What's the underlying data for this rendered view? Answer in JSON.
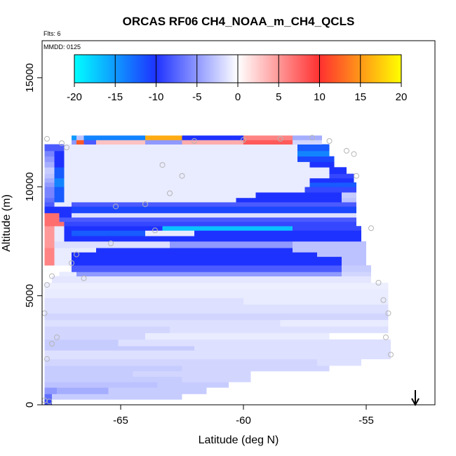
{
  "chart_data": {
    "type": "heatmap",
    "title": "ORCAS RF06 CH4_NOAA_m_CH4_QCLS",
    "flights_label": "Flts: 6",
    "date_label": "MMDD: 0125",
    "xlabel": "Latitude (deg N)",
    "ylabel": "Altitude (m)",
    "xlim": [
      -68.2,
      -52.2
    ],
    "ylim": [
      0,
      16700
    ],
    "x_ticks": [
      -65,
      -60,
      -55
    ],
    "x_tick_labels": [
      "-65",
      "-60",
      "-55"
    ],
    "y_ticks": [
      0,
      5000,
      10000,
      15000
    ],
    "y_tick_labels": [
      "0",
      "5000",
      "10000",
      "15000"
    ],
    "colorbar": {
      "range": [
        -20,
        20
      ],
      "ticks": [
        -20,
        -15,
        -10,
        -5,
        0,
        5,
        10,
        15,
        20
      ],
      "tick_labels": [
        "-20",
        "-15",
        "-10",
        "-5",
        "0",
        "5",
        "10",
        "15",
        "20"
      ],
      "colors": {
        "cyan": "#00FFFF",
        "blue": "#1E32FF",
        "white": "#FFFFFF",
        "red": "#FF3030",
        "yellow": "#FFFF00"
      }
    },
    "rows": [
      {
        "y0": 0,
        "y1": 250,
        "segments": [
          [
            -68.1,
            -67.8,
            -9
          ]
        ]
      },
      {
        "y0": 250,
        "y1": 500,
        "segments": [
          [
            -68.1,
            -67.8,
            -7
          ],
          [
            -67.8,
            -62.5,
            -2.5
          ]
        ]
      },
      {
        "y0": 500,
        "y1": 800,
        "segments": [
          [
            -68.1,
            -67.6,
            -5
          ],
          [
            -67.6,
            -65.5,
            -4
          ],
          [
            -65.5,
            -61.5,
            -2.5
          ]
        ]
      },
      {
        "y0": 800,
        "y1": 1050,
        "segments": [
          [
            -68.1,
            -63.5,
            -3
          ],
          [
            -63.5,
            -60.6,
            -2.5
          ]
        ]
      },
      {
        "y0": 1050,
        "y1": 1300,
        "segments": [
          [
            -68.1,
            -62.5,
            -2.5
          ],
          [
            -62.5,
            -59.7,
            -2
          ]
        ]
      },
      {
        "y0": 1300,
        "y1": 1550,
        "segments": [
          [
            -68.1,
            -64.5,
            -2.5
          ],
          [
            -64.5,
            -59.7,
            -2
          ]
        ]
      },
      {
        "y0": 1550,
        "y1": 1800,
        "segments": [
          [
            -68.1,
            -62.5,
            -2.5
          ],
          [
            -62.5,
            -56.5,
            -2
          ]
        ]
      },
      {
        "y0": 1800,
        "y1": 2100,
        "segments": [
          [
            -68.1,
            -57.0,
            -2
          ],
          [
            -57.0,
            -55.2,
            -1.5
          ]
        ]
      },
      {
        "y0": 2100,
        "y1": 2500,
        "segments": [
          [
            -68.1,
            -54.0,
            -1.5
          ]
        ]
      },
      {
        "y0": 2500,
        "y1": 2700,
        "segments": [
          [
            -68.1,
            -62.0,
            -2.5
          ],
          [
            -62.0,
            -54.0,
            -1.5
          ]
        ]
      },
      {
        "y0": 2700,
        "y1": 3000,
        "segments": [
          [
            -68.1,
            -65.1,
            -2.5
          ],
          [
            -65.1,
            -54.0,
            -1.5
          ]
        ]
      },
      {
        "y0": 3000,
        "y1": 3300,
        "segments": [
          [
            -68.1,
            -64.0,
            -2
          ],
          [
            -64.0,
            -56.5,
            -1
          ]
        ]
      },
      {
        "y0": 3300,
        "y1": 3600,
        "segments": [
          [
            -68.1,
            -63.0,
            -2
          ],
          [
            -63.0,
            -54.1,
            -1.5
          ]
        ]
      },
      {
        "y0": 3600,
        "y1": 3900,
        "segments": [
          [
            -68.1,
            -58.5,
            -1.5
          ],
          [
            -58.5,
            -54.1,
            -1
          ]
        ]
      },
      {
        "y0": 3900,
        "y1": 4200,
        "segments": [
          [
            -68.1,
            -54.1,
            -2
          ]
        ]
      },
      {
        "y0": 4200,
        "y1": 4600,
        "segments": [
          [
            -68.1,
            -54.1,
            -1.5
          ]
        ]
      },
      {
        "y0": 4600,
        "y1": 4900,
        "segments": [
          [
            -68.1,
            -60.0,
            -1.5
          ],
          [
            -60.0,
            -54.1,
            -1
          ]
        ]
      },
      {
        "y0": 4900,
        "y1": 5300,
        "segments": [
          [
            -68.1,
            -54.1,
            -1
          ]
        ]
      },
      {
        "y0": 5300,
        "y1": 5600,
        "segments": [
          [
            -68.1,
            -54.1,
            -0.8
          ]
        ]
      },
      {
        "y0": 5600,
        "y1": 5900,
        "segments": [
          [
            -67.8,
            -54.8,
            -1.2
          ]
        ]
      },
      {
        "y0": 5900,
        "y1": 6100,
        "segments": [
          [
            -67.5,
            -66.8,
            -1
          ],
          [
            -66.8,
            -56.0,
            -5
          ],
          [
            -56.0,
            -54.8,
            -2
          ]
        ]
      },
      {
        "y0": 6100,
        "y1": 6400,
        "segments": [
          [
            -67.0,
            -56.0,
            -8
          ],
          [
            -56.0,
            -54.8,
            -2.5
          ]
        ]
      },
      {
        "y0": 6400,
        "y1": 6800,
        "segments": [
          [
            -68.1,
            -67.7,
            6
          ],
          [
            -67.7,
            -67.0,
            -1
          ],
          [
            -67.0,
            -56.0,
            -10
          ],
          [
            -56.0,
            -55.0,
            -3
          ]
        ]
      },
      {
        "y0": 6800,
        "y1": 7000,
        "segments": [
          [
            -68.1,
            -67.7,
            6
          ],
          [
            -67.7,
            -67.0,
            -1
          ],
          [
            -67.0,
            -57.0,
            -10
          ],
          [
            -57.0,
            -55.0,
            -3
          ]
        ]
      },
      {
        "y0": 7000,
        "y1": 7200,
        "segments": [
          [
            -68.1,
            -67.7,
            6
          ],
          [
            -67.7,
            -66.0,
            -1
          ],
          [
            -66.0,
            -58.0,
            -10
          ],
          [
            -58.0,
            -55.0,
            -3
          ]
        ]
      },
      {
        "y0": 7200,
        "y1": 7500,
        "segments": [
          [
            -68.1,
            -67.7,
            5
          ],
          [
            -67.7,
            -63.0,
            -1.5
          ],
          [
            -63.0,
            -58.0,
            -5
          ],
          [
            -58.0,
            -55.0,
            -3
          ]
        ]
      },
      {
        "y0": 7500,
        "y1": 7750,
        "segments": [
          [
            -68.1,
            -67.7,
            5
          ],
          [
            -67.7,
            -67.3,
            -1
          ],
          [
            -67.3,
            -55.2,
            -10
          ]
        ]
      },
      {
        "y0": 7750,
        "y1": 8000,
        "segments": [
          [
            -68.1,
            -67.7,
            5
          ],
          [
            -67.7,
            -67.3,
            -1
          ],
          [
            -67.3,
            -67.0,
            -10
          ],
          [
            -67.0,
            -64.0,
            -12
          ],
          [
            -64.0,
            -62.0,
            -1
          ],
          [
            -62.0,
            -55.2,
            -10
          ]
        ]
      },
      {
        "y0": 8000,
        "y1": 8200,
        "segments": [
          [
            -68.1,
            -67.7,
            5
          ],
          [
            -67.7,
            -67.3,
            -1
          ],
          [
            -67.3,
            -63.3,
            -10
          ],
          [
            -63.3,
            -58.0,
            -17
          ],
          [
            -58.0,
            -55.2,
            -9
          ]
        ]
      },
      {
        "y0": 8200,
        "y1": 8400,
        "segments": [
          [
            -68.1,
            -67.3,
            7
          ],
          [
            -67.3,
            -55.4,
            -9
          ]
        ]
      },
      {
        "y0": 8400,
        "y1": 8600,
        "segments": [
          [
            -68.1,
            -67.5,
            7
          ],
          [
            -67.5,
            -55.4,
            -8
          ]
        ]
      },
      {
        "y0": 8600,
        "y1": 8800,
        "segments": [
          [
            -68.1,
            -67.5,
            7
          ],
          [
            -67.5,
            -67.0,
            -10
          ],
          [
            -67.0,
            -55.4,
            -1.5
          ]
        ]
      },
      {
        "y0": 8800,
        "y1": 9100,
        "segments": [
          [
            -68.1,
            -67.0,
            -10
          ],
          [
            -67.0,
            -55.4,
            -11
          ]
        ]
      },
      {
        "y0": 9100,
        "y1": 9300,
        "segments": [
          [
            -68.1,
            -67.7,
            -8
          ],
          [
            -67.7,
            -67.0,
            -1
          ],
          [
            -67.0,
            -55.4,
            -8
          ]
        ]
      },
      {
        "y0": 9300,
        "y1": 9500,
        "segments": [
          [
            -68.1,
            -67.7,
            -7
          ],
          [
            -67.7,
            -67.3,
            -12
          ],
          [
            -67.3,
            -60.3,
            -1
          ],
          [
            -60.3,
            -56.0,
            -10
          ],
          [
            -56.0,
            -55.4,
            -3
          ]
        ]
      },
      {
        "y0": 9500,
        "y1": 9750,
        "segments": [
          [
            -68.1,
            -67.7,
            -6
          ],
          [
            -67.7,
            -67.3,
            -12
          ],
          [
            -67.3,
            -59.5,
            -1
          ],
          [
            -59.5,
            -56.0,
            -10
          ],
          [
            -56.0,
            -55.4,
            -2.5
          ]
        ]
      },
      {
        "y0": 9750,
        "y1": 10000,
        "segments": [
          [
            -68.1,
            -67.7,
            -6
          ],
          [
            -67.7,
            -67.3,
            -12
          ],
          [
            -67.3,
            -57.5,
            -1
          ],
          [
            -57.5,
            -55.4,
            -9
          ]
        ]
      },
      {
        "y0": 10000,
        "y1": 10200,
        "segments": [
          [
            -68.1,
            -67.7,
            -5
          ],
          [
            -67.7,
            -67.3,
            -14
          ],
          [
            -67.3,
            -57.3,
            -1
          ],
          [
            -57.3,
            -55.4,
            -12
          ]
        ]
      },
      {
        "y0": 10200,
        "y1": 10400,
        "segments": [
          [
            -68.1,
            -67.7,
            -4
          ],
          [
            -67.7,
            -67.3,
            -14
          ],
          [
            -67.3,
            -57.3,
            -1
          ],
          [
            -57.3,
            -55.5,
            -10
          ]
        ]
      },
      {
        "y0": 10400,
        "y1": 10600,
        "segments": [
          [
            -68.1,
            -67.7,
            -3
          ],
          [
            -67.7,
            -67.3,
            -12
          ],
          [
            -67.3,
            -56.5,
            -1
          ],
          [
            -56.5,
            -55.5,
            -9
          ]
        ]
      },
      {
        "y0": 10600,
        "y1": 10900,
        "segments": [
          [
            -68.1,
            -67.7,
            -2.5
          ],
          [
            -67.7,
            -67.3,
            -12
          ],
          [
            -67.3,
            -56.5,
            -1
          ],
          [
            -56.5,
            -55.8,
            -10
          ]
        ]
      },
      {
        "y0": 10900,
        "y1": 11150,
        "segments": [
          [
            -68.1,
            -67.7,
            -4
          ],
          [
            -67.7,
            -67.3,
            -10
          ],
          [
            -67.3,
            -57.3,
            -1
          ],
          [
            -57.3,
            -56.3,
            -10
          ]
        ]
      },
      {
        "y0": 11150,
        "y1": 11400,
        "segments": [
          [
            -68.1,
            -67.7,
            -5
          ],
          [
            -67.7,
            -67.3,
            -10
          ],
          [
            -67.3,
            -57.8,
            -1
          ],
          [
            -57.8,
            -56.3,
            -11
          ]
        ]
      },
      {
        "y0": 11400,
        "y1": 11650,
        "segments": [
          [
            -68.1,
            -67.7,
            -6
          ],
          [
            -67.7,
            -67.3,
            -10
          ],
          [
            -67.3,
            -57.8,
            -1
          ],
          [
            -57.8,
            -56.5,
            -14
          ]
        ]
      },
      {
        "y0": 11650,
        "y1": 11950,
        "segments": [
          [
            -68.1,
            -67.3,
            -8
          ],
          [
            -67.3,
            -57.8,
            -1
          ],
          [
            -57.8,
            -56.5,
            -12
          ]
        ]
      },
      {
        "y0": 11950,
        "y1": 12150,
        "segments": [
          [
            -67.0,
            -66.8,
            -5
          ],
          [
            -66.8,
            -66.5,
            12
          ],
          [
            -66.5,
            -66.0,
            -8
          ],
          [
            -66.0,
            -64.0,
            3
          ],
          [
            -64.0,
            -62.5,
            -5
          ],
          [
            -62.5,
            -60.0,
            4
          ],
          [
            -60.0,
            -58.0,
            8
          ],
          [
            -58.0,
            -56.8,
            -2
          ]
        ]
      },
      {
        "y0": 12150,
        "y1": 12350,
        "segments": [
          [
            -67.0,
            -66.8,
            -15
          ],
          [
            -66.8,
            -66.5,
            -3
          ],
          [
            -66.5,
            -64.0,
            -14
          ],
          [
            -64.0,
            -62.5,
            16
          ],
          [
            -62.5,
            -60.0,
            -10
          ],
          [
            -60.0,
            -58.0,
            6
          ],
          [
            -58.0,
            -56.8,
            -4
          ]
        ]
      }
    ],
    "scatter_points": [
      [
        -68.1,
        200
      ],
      [
        -67.9,
        150
      ],
      [
        -68.0,
        2100
      ],
      [
        -67.8,
        2800
      ],
      [
        -67.6,
        3100
      ],
      [
        -68.1,
        4200
      ],
      [
        -68.0,
        5500
      ],
      [
        -67.8,
        5900
      ],
      [
        -66.5,
        5800
      ],
      [
        -67.0,
        6500
      ],
      [
        -66.8,
        6900
      ],
      [
        -65.4,
        7400
      ],
      [
        -63.6,
        8000
      ],
      [
        -64.0,
        9200
      ],
      [
        -65.2,
        9100
      ],
      [
        -63.0,
        9700
      ],
      [
        -62.5,
        10500
      ],
      [
        -63.3,
        11000
      ],
      [
        -67.2,
        11800
      ],
      [
        -67.4,
        12000
      ],
      [
        -68.0,
        12200
      ],
      [
        -62.0,
        12100
      ],
      [
        -60.0,
        12150
      ],
      [
        -58.5,
        12200
      ],
      [
        -57.2,
        12250
      ],
      [
        -56.5,
        12100
      ],
      [
        -55.8,
        11650
      ],
      [
        -55.5,
        11500
      ],
      [
        -55.4,
        10500
      ],
      [
        -54.8,
        8100
      ],
      [
        -54.5,
        5600
      ],
      [
        -54.3,
        4800
      ],
      [
        -54.1,
        4200
      ],
      [
        -54.2,
        3100
      ],
      [
        -54.0,
        2300
      ]
    ],
    "arrow_x": -53.0
  }
}
